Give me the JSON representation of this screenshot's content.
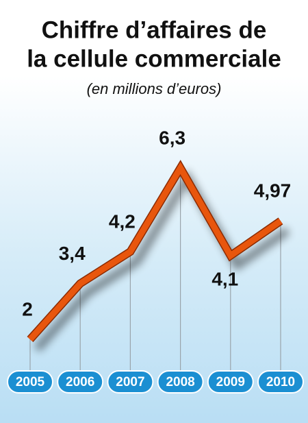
{
  "chart_data": {
    "type": "line",
    "title": [
      "Chiffre d’affaires de",
      "la cellule commerciale"
    ],
    "subtitle": "(en millions d’euros)",
    "categories": [
      "2005",
      "2006",
      "2007",
      "2008",
      "2009",
      "2010"
    ],
    "values": [
      2,
      3.4,
      4.2,
      6.3,
      4.1,
      4.97
    ],
    "value_labels": [
      "2",
      "3,4",
      "4,2",
      "6,3",
      "4,1",
      "4,97"
    ],
    "color": "#e8560f",
    "category_color": "#1b8fd2"
  }
}
